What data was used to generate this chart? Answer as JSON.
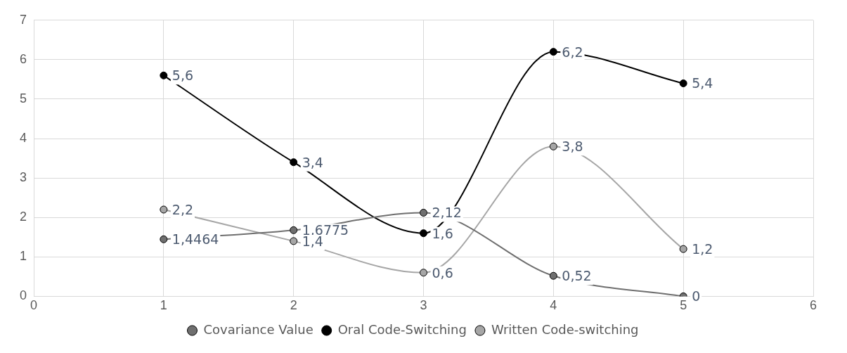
{
  "chart_data": {
    "type": "line",
    "x": [
      1,
      2,
      3,
      4,
      5
    ],
    "xlim": [
      0,
      6
    ],
    "xticks": [
      0,
      1,
      2,
      3,
      4,
      5,
      6
    ],
    "ylim": [
      0,
      7
    ],
    "yticks": [
      0,
      1,
      2,
      3,
      4,
      5,
      6,
      7
    ],
    "grid": true,
    "legend": "bottom",
    "marker": "circle",
    "line_style": "solid",
    "series": [
      {
        "name": "Covariance Value",
        "color": "#6f6f6f",
        "values": [
          1.4464,
          1.6775,
          2.12,
          0.52,
          0
        ],
        "value_labels": [
          "1,4464",
          "1,6775",
          "2,12",
          "0,52",
          "0"
        ]
      },
      {
        "name": "Oral Code-Switching",
        "color": "#000000",
        "values": [
          5.6,
          3.4,
          1.6,
          6.2,
          5.4
        ],
        "value_labels": [
          "5,6",
          "3,4",
          "1,6",
          "6,2",
          "5,4"
        ]
      },
      {
        "name": "Written Code-switching",
        "color": "#a6a6a6",
        "values": [
          2.2,
          1.4,
          0.6,
          3.8,
          1.2
        ],
        "value_labels": [
          "2,2",
          "1,4",
          "0,6",
          "3,8",
          "1,2"
        ]
      }
    ]
  }
}
